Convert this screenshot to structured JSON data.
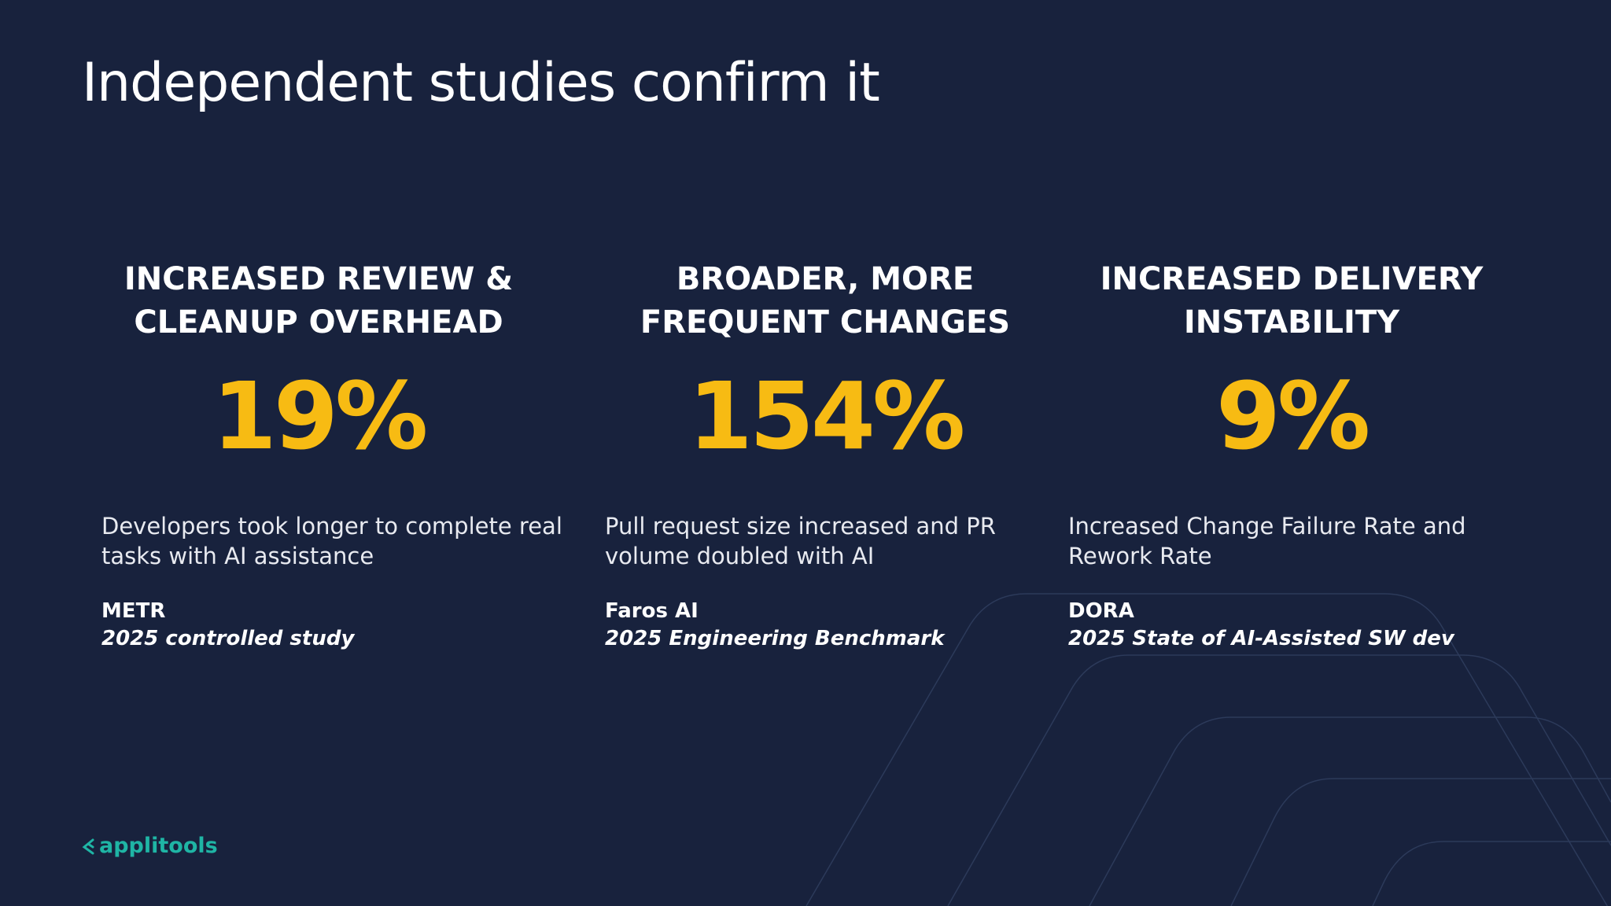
{
  "title": "Independent studies confirm it",
  "columns": [
    {
      "heading": [
        "INCREASED REVIEW &",
        "CLEANUP OVERHEAD"
      ],
      "stat": "19%",
      "description": [
        "Developers took longer to complete real",
        "tasks with AI assistance"
      ],
      "source": "METR",
      "study": "2025 controlled study"
    },
    {
      "heading": [
        "BROADER, MORE",
        "FREQUENT CHANGES"
      ],
      "stat": "154%",
      "description": [
        "Pull request size increased and PR",
        "volume doubled with AI"
      ],
      "source": "Faros AI",
      "study": "2025 Engineering Benchmark"
    },
    {
      "heading": [
        "INCREASED DELIVERY",
        "INSTABILITY"
      ],
      "stat": "9%",
      "description": [
        "Increased Change Failure Rate and",
        "Rework Rate"
      ],
      "source": "DORA",
      "study": "2025 State of AI-Assisted SW dev"
    }
  ],
  "logo": "applitools"
}
